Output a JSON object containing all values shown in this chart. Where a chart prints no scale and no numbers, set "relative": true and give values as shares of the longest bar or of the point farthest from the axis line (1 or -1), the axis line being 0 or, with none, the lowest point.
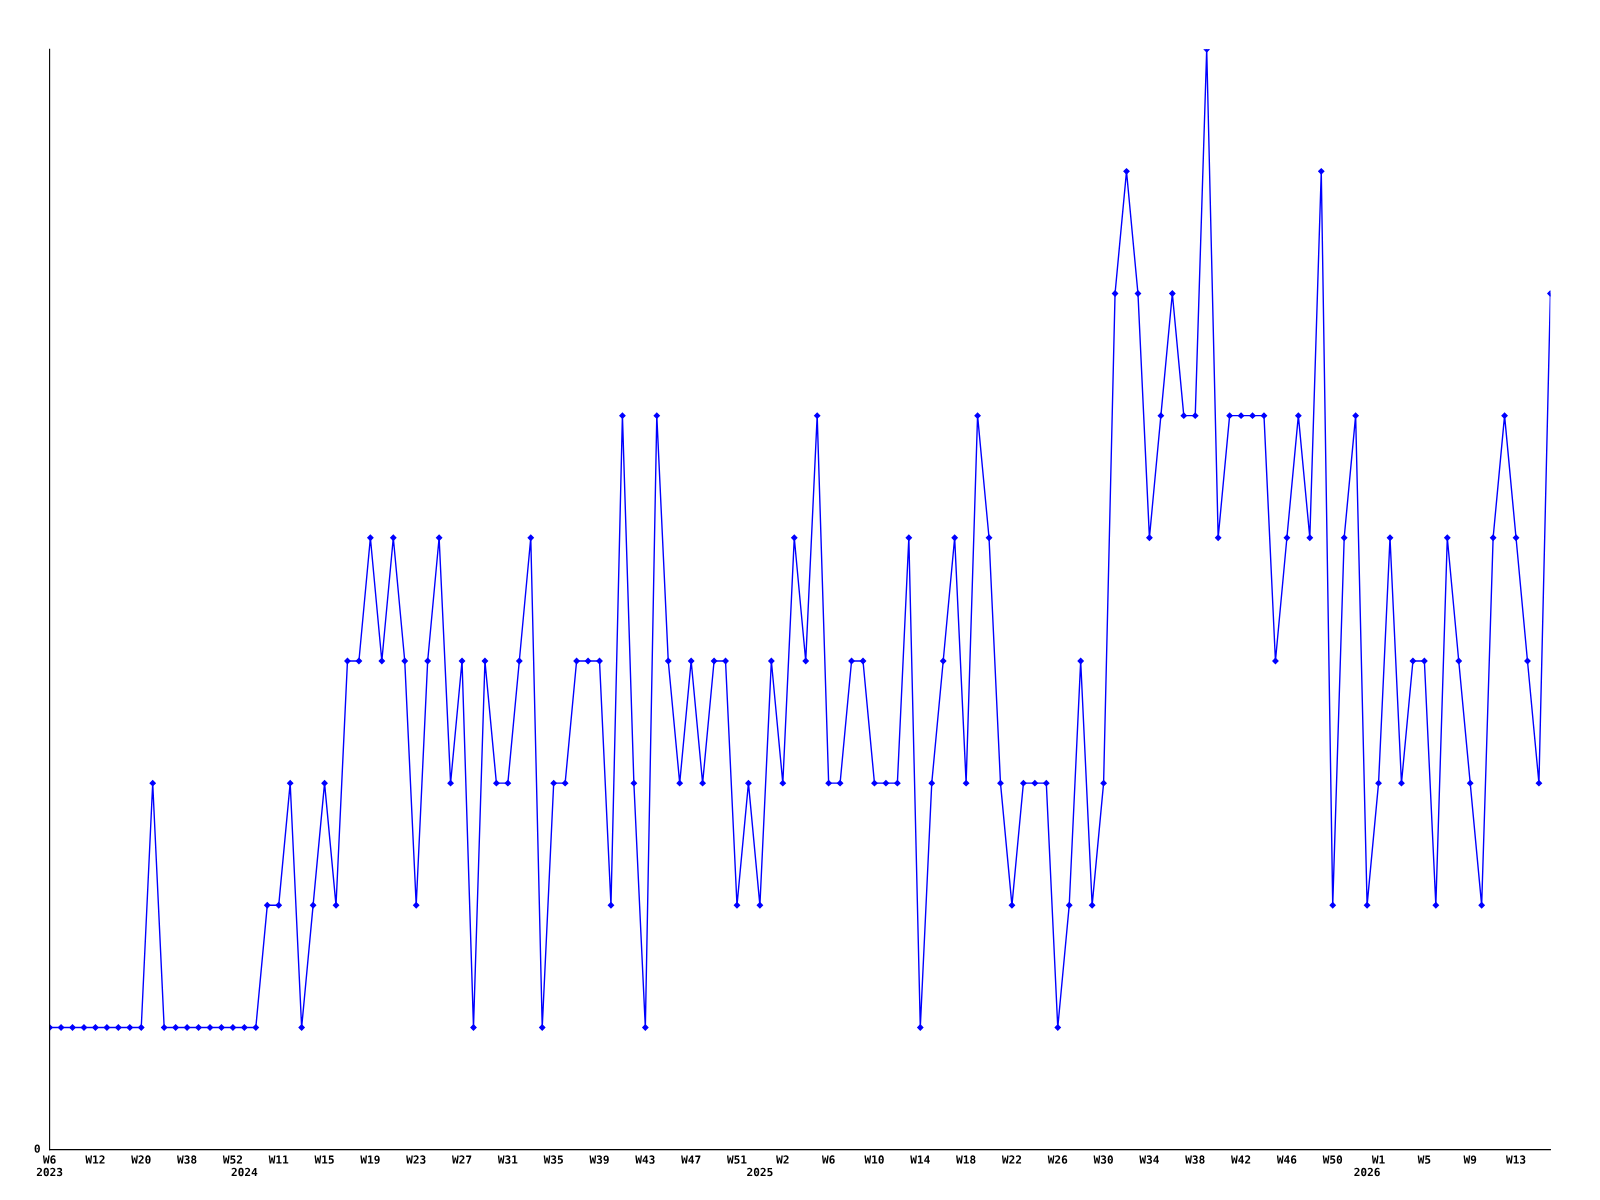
{
  "chart_data": {
    "type": "line",
    "relative": true,
    "marker": "diamond",
    "line_style": "solid",
    "grid": false,
    "legend": false,
    "annotations": [
      "0"
    ],
    "categories": [
      "W6\n2023",
      null,
      null,
      null,
      "W12",
      null,
      null,
      null,
      "W20",
      null,
      null,
      null,
      "W38",
      null,
      null,
      null,
      "W52",
      "\n2024",
      null,
      null,
      "W11",
      null,
      null,
      null,
      "W15",
      null,
      null,
      null,
      "W19",
      null,
      null,
      null,
      "W23",
      null,
      null,
      null,
      "W27",
      null,
      null,
      null,
      "W31",
      null,
      null,
      null,
      "W35",
      null,
      null,
      null,
      "W39",
      null,
      null,
      null,
      "W43",
      null,
      null,
      null,
      "W47",
      null,
      null,
      null,
      "W51",
      null,
      "\n2025",
      null,
      "W2",
      null,
      null,
      null,
      "W6",
      null,
      null,
      null,
      "W10",
      null,
      null,
      null,
      "W14",
      null,
      null,
      null,
      "W18",
      null,
      null,
      null,
      "W22",
      null,
      null,
      null,
      "W26",
      null,
      null,
      null,
      "W30",
      null,
      null,
      null,
      "W34",
      null,
      null,
      null,
      "W38",
      null,
      null,
      null,
      "W42",
      null,
      null,
      null,
      "W46",
      null,
      null,
      null,
      "W50",
      null,
      null,
      "\n2026",
      "W1",
      null,
      null,
      null,
      "W5",
      null,
      null,
      null,
      "W9",
      null,
      null,
      null,
      "W13",
      null,
      null,
      null
    ],
    "series": [
      {
        "color": "#0000ff",
        "values": [
          0.111,
          0.111,
          0.111,
          0.111,
          0.111,
          0.111,
          0.111,
          0.111,
          0.111,
          0.333,
          0.111,
          0.111,
          0.111,
          0.111,
          0.111,
          0.111,
          0.111,
          0.111,
          0.111,
          0.222,
          0.222,
          0.333,
          0.111,
          0.222,
          0.333,
          0.222,
          0.444,
          0.444,
          0.556,
          0.444,
          0.556,
          0.444,
          0.222,
          0.444,
          0.556,
          0.333,
          0.444,
          0.111,
          0.444,
          0.333,
          0.333,
          0.444,
          0.556,
          0.111,
          0.333,
          0.333,
          0.444,
          0.444,
          0.444,
          0.222,
          0.667,
          0.333,
          0.111,
          0.667,
          0.444,
          0.333,
          0.444,
          0.333,
          0.444,
          0.444,
          0.222,
          0.333,
          0.222,
          0.444,
          0.333,
          0.556,
          0.444,
          0.667,
          0.333,
          0.333,
          0.444,
          0.444,
          0.333,
          0.333,
          0.333,
          0.556,
          0.111,
          0.333,
          0.444,
          0.556,
          0.333,
          0.667,
          0.556,
          0.333,
          0.222,
          0.333,
          0.333,
          0.333,
          0.111,
          0.222,
          0.444,
          0.222,
          0.333,
          0.778,
          0.889,
          0.778,
          0.556,
          0.667,
          0.778,
          0.667,
          0.667,
          1,
          0.556,
          0.667,
          0.667,
          0.667,
          0.667,
          0.444,
          0.556,
          0.667,
          0.556,
          0.889,
          0.222,
          0.556,
          0.667,
          0.222,
          0.333,
          0.556,
          0.333,
          0.444,
          0.444,
          0.222,
          0.556,
          0.444,
          0.333,
          0.222,
          0.556,
          0.667,
          0.556,
          0.444,
          0.333,
          0.778
        ]
      }
    ]
  }
}
